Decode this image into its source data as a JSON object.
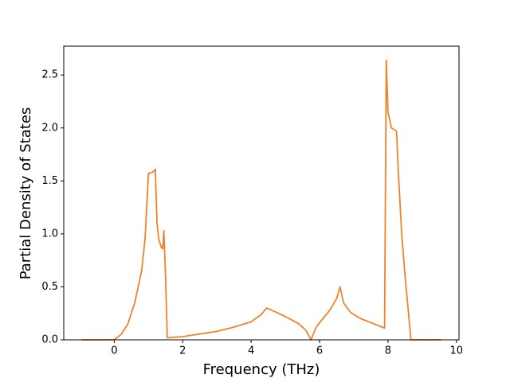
{
  "chart_data": {
    "type": "line",
    "x_label": "Frequency (THz)",
    "y_label": "Partial Density of States",
    "x": [
      -0.95,
      0,
      0.2,
      0.4,
      0.6,
      0.8,
      0.9,
      1.0,
      1.1,
      1.15,
      1.2,
      1.25,
      1.3,
      1.38,
      1.42,
      1.45,
      1.5,
      1.55,
      2,
      3,
      3.5,
      4,
      4.3,
      4.45,
      4.6,
      5.0,
      5.4,
      5.6,
      5.75,
      5.9,
      6.1,
      6.3,
      6.5,
      6.6,
      6.7,
      6.9,
      7.2,
      7.6,
      7.9,
      7.95,
      8.0,
      8.1,
      8.25,
      8.3,
      8.4,
      8.5,
      8.6,
      8.67,
      9.55
    ],
    "series": [
      {
        "color": "#f0822a",
        "values": [
          0,
          0,
          0.05,
          0.15,
          0.35,
          0.65,
          0.95,
          1.57,
          1.58,
          1.59,
          1.61,
          1.1,
          0.95,
          0.87,
          0.86,
          1.03,
          0.6,
          0.02,
          0.03,
          0.08,
          0.12,
          0.17,
          0.24,
          0.3,
          0.28,
          0.22,
          0.15,
          0.09,
          0.0,
          0.12,
          0.2,
          0.28,
          0.39,
          0.5,
          0.35,
          0.26,
          0.2,
          0.15,
          0.11,
          2.64,
          2.15,
          2.0,
          1.97,
          1.6,
          1.0,
          0.6,
          0.25,
          0,
          0
        ]
      }
    ],
    "xlim": [
      -1.475,
      10.075
    ],
    "ylim": [
      0,
      2.772
    ],
    "xticks": [
      0,
      2,
      4,
      6,
      8,
      10
    ],
    "yticks": [
      {
        "value": 0,
        "label": "0.0"
      },
      0.5,
      {
        "value": 1,
        "label": "1.0"
      },
      1.5,
      {
        "value": 2,
        "label": "2.0"
      },
      2.5
    ]
  }
}
